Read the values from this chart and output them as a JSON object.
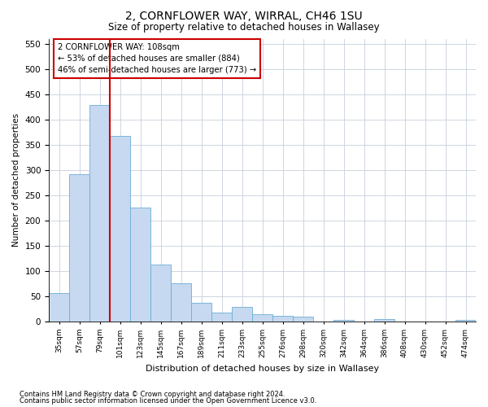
{
  "title": "2, CORNFLOWER WAY, WIRRAL, CH46 1SU",
  "subtitle": "Size of property relative to detached houses in Wallasey",
  "xlabel": "Distribution of detached houses by size in Wallasey",
  "ylabel": "Number of detached properties",
  "footnote1": "Contains HM Land Registry data © Crown copyright and database right 2024.",
  "footnote2": "Contains public sector information licensed under the Open Government Licence v3.0.",
  "annotation_line1": "2 CORNFLOWER WAY: 108sqm",
  "annotation_line2": "← 53% of detached houses are smaller (884)",
  "annotation_line3": "46% of semi-detached houses are larger (773) →",
  "bar_color": "#c6d9f0",
  "bar_edge_color": "#6baed6",
  "vline_color": "#cc0000",
  "annotation_box_edge": "#cc0000",
  "background_color": "#ffffff",
  "grid_color": "#c8d0dc",
  "categories": [
    "35sqm",
    "57sqm",
    "79sqm",
    "101sqm",
    "123sqm",
    "145sqm",
    "167sqm",
    "189sqm",
    "211sqm",
    "233sqm",
    "255sqm",
    "276sqm",
    "298sqm",
    "320sqm",
    "342sqm",
    "364sqm",
    "386sqm",
    "408sqm",
    "430sqm",
    "452sqm",
    "474sqm"
  ],
  "values": [
    57,
    292,
    428,
    368,
    225,
    113,
    76,
    38,
    18,
    29,
    15,
    12,
    10,
    0,
    4,
    0,
    5,
    0,
    0,
    0,
    4
  ],
  "vline_x_index": 3,
  "ylim": [
    0,
    560
  ],
  "yticks": [
    0,
    50,
    100,
    150,
    200,
    250,
    300,
    350,
    400,
    450,
    500,
    550
  ]
}
